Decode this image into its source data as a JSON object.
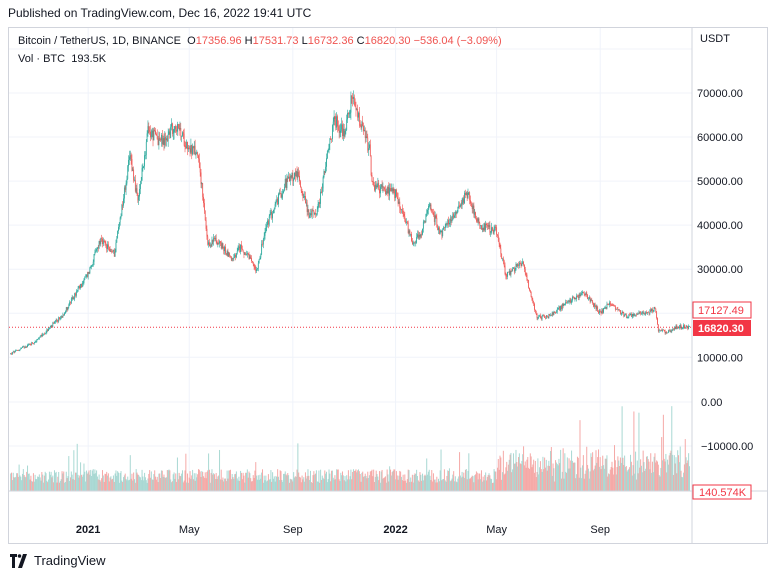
{
  "header": {
    "published": "Published on TradingView.com, Dec 16, 2022 19:41 UTC"
  },
  "legend": {
    "symbol": "Bitcoin / TetherUS, 1D, BINANCE",
    "o_label": "O",
    "o": "17356.96",
    "h_label": "H",
    "h": "17531.73",
    "l_label": "L",
    "l": "16732.36",
    "c_label": "C",
    "c": "16820.30",
    "change": "−536.04 (−3.09%)",
    "vol_label": "Vol · BTC",
    "vol_value": "193.5K"
  },
  "colors": {
    "up": "#26a69a",
    "down": "#ef5350",
    "vol_up": "#a8d8d3",
    "vol_down": "#f5a9a7",
    "last": "#f23645"
  },
  "footer": {
    "brand": "TradingView"
  },
  "chart_data": {
    "type": "candlestick",
    "symbol": "Bitcoin / TetherUS",
    "price_unit": "USDT",
    "y_ticks": [
      "10000.00",
      "20000.00",
      "30000.00",
      "40000.00",
      "50000.00",
      "60000.00",
      "70000.00"
    ],
    "y_tick_values": [
      10000,
      20000,
      30000,
      40000,
      50000,
      60000,
      70000
    ],
    "ylim": [
      0,
      80000
    ],
    "vol_axis_ticks": [
      "0.00",
      "−10000.00"
    ],
    "x_ticks": [
      {
        "label": "2021",
        "date": "2021-01-01",
        "bold": true
      },
      {
        "label": "May",
        "date": "2021-05-01",
        "bold": false
      },
      {
        "label": "Sep",
        "date": "2021-09-01",
        "bold": false
      },
      {
        "label": "2022",
        "date": "2022-01-01",
        "bold": true
      },
      {
        "label": "May",
        "date": "2022-05-01",
        "bold": false
      },
      {
        "label": "Sep",
        "date": "2022-09-01",
        "bold": false
      }
    ],
    "x_range": [
      "2020-09-29",
      "2022-12-19"
    ],
    "price_labels": [
      {
        "value": 17127.49,
        "text": "17127.49",
        "style": "outline"
      },
      {
        "value": 16820.3,
        "text": "16820.30",
        "style": "filled"
      }
    ],
    "volume_label": "140.574K",
    "close_series": {
      "dates": [
        "2020-10-01",
        "2020-11-01",
        "2020-12-01",
        "2021-01-01",
        "2021-01-15",
        "2021-02-01",
        "2021-02-20",
        "2021-03-01",
        "2021-03-13",
        "2021-04-01",
        "2021-04-14",
        "2021-05-01",
        "2021-05-12",
        "2021-05-23",
        "2021-06-01",
        "2021-06-22",
        "2021-07-01",
        "2021-07-20",
        "2021-08-01",
        "2021-08-23",
        "2021-09-06",
        "2021-09-21",
        "2021-10-01",
        "2021-10-20",
        "2021-11-01",
        "2021-11-10",
        "2021-12-01",
        "2021-12-04",
        "2022-01-01",
        "2022-01-22",
        "2022-02-01",
        "2022-02-10",
        "2022-02-24",
        "2022-03-28",
        "2022-04-10",
        "2022-05-01",
        "2022-05-12",
        "2022-06-01",
        "2022-06-13",
        "2022-06-18",
        "2022-07-01",
        "2022-08-01",
        "2022-08-14",
        "2022-09-01",
        "2022-09-13",
        "2022-10-01",
        "2022-11-01",
        "2022-11-05",
        "2022-11-09",
        "2022-11-21",
        "2022-12-01",
        "2022-12-16"
      ],
      "values": [
        10800,
        13800,
        19400,
        29000,
        36500,
        33500,
        56000,
        45000,
        61200,
        58800,
        63000,
        57500,
        56000,
        35000,
        37000,
        32000,
        35000,
        30000,
        40000,
        49500,
        51800,
        42000,
        43800,
        64000,
        61000,
        68700,
        57000,
        49000,
        47000,
        36000,
        38500,
        44500,
        38000,
        47500,
        40000,
        38500,
        28500,
        31800,
        22500,
        19000,
        19300,
        23500,
        24500,
        20000,
        22400,
        19300,
        20500,
        21300,
        16000,
        15800,
        17000,
        16820
      ]
    }
  }
}
